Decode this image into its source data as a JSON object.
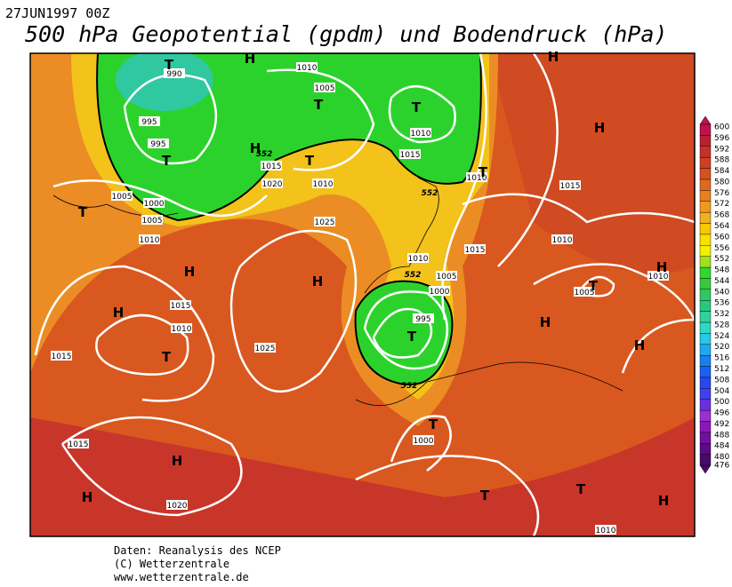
{
  "header": {
    "date": "27JUN1997 00Z",
    "title": "500 hPa Geopotential (gpdm) und Bodendruck (hPa)"
  },
  "map": {
    "labels": [
      "1010",
      "990",
      "1005",
      "995",
      "995",
      "1010",
      "1015",
      "1015",
      "1010",
      "1020",
      "1010",
      "1015",
      "1005",
      "1000",
      "1005",
      "1025",
      "1010",
      "1010",
      "1015",
      "1010",
      "1005",
      "1000",
      "1005",
      "1010",
      "1015",
      "995",
      "1010",
      "1025",
      "1015",
      "1000",
      "1015",
      "1020",
      "1010",
      "552",
      "552",
      "552",
      "552",
      "H",
      "H",
      "T",
      "T",
      "T",
      "H",
      "T",
      "T",
      "H",
      "T",
      "T",
      "H",
      "H",
      "H",
      "H",
      "H",
      "T",
      "T",
      "T",
      "H",
      "T",
      "H",
      "H",
      "T",
      "T",
      "H"
    ]
  },
  "colorbar": {
    "ticks": [
      476,
      480,
      484,
      488,
      492,
      496,
      500,
      504,
      508,
      512,
      516,
      520,
      524,
      528,
      532,
      536,
      540,
      544,
      548,
      552,
      556,
      560,
      564,
      568,
      572,
      576,
      580,
      584,
      588,
      592,
      596,
      600
    ],
    "colors": [
      "#4a0a6a",
      "#5c0a86",
      "#7010a0",
      "#8a18b8",
      "#9a30d0",
      "#6a30e0",
      "#4040f0",
      "#2848f0",
      "#1c60f0",
      "#1880f0",
      "#20a8f0",
      "#28c8e8",
      "#30d8c0",
      "#30d0a0",
      "#28c880",
      "#30c860",
      "#38c840",
      "#30d830",
      "#a0e020",
      "#f0f000",
      "#f8e000",
      "#f8c800",
      "#f0b020",
      "#f09820",
      "#e88020",
      "#e06820",
      "#d85020",
      "#d04020",
      "#c83028",
      "#b82030",
      "#c01050"
    ]
  },
  "footer": [
    "Daten: Reanalysis des NCEP",
    "(C) Wetterzentrale",
    "www.wetterzentrale.de"
  ]
}
